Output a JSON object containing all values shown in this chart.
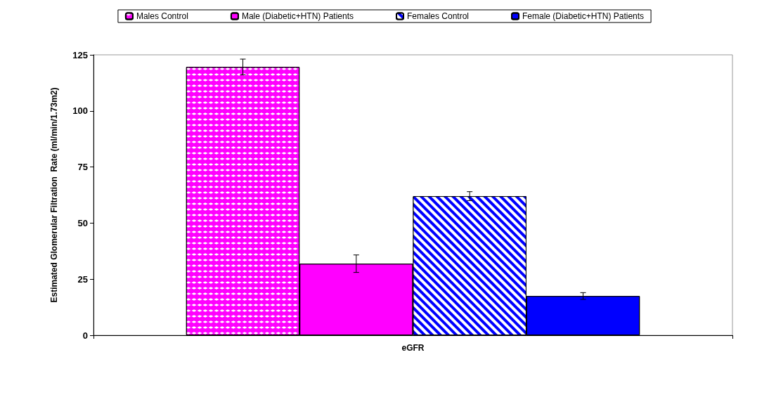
{
  "chart_data": {
    "type": "bar",
    "ylabel": "Estimated Glomerular Filtration  Rate (ml/min/1.73m2)",
    "categories": [
      "eGFR"
    ],
    "series": [
      {
        "name": "Males Control",
        "color": "#ff00ff",
        "values": [
          119.6
        ],
        "errors": [
          3.5
        ]
      },
      {
        "name": "Male (Diabetic+HTN) Patients",
        "color": "#ff00ff",
        "values": [
          31.9
        ],
        "errors": [
          3.9
        ]
      },
      {
        "name": "Females Control",
        "color": "#0000ff",
        "values": [
          62
        ],
        "errors": [
          2
        ]
      },
      {
        "name": "Female (Diabetic+HTN) Patients",
        "color": "#0000ff",
        "values": [
          17.5
        ],
        "errors": [
          1.5
        ]
      }
    ],
    "ylim": [
      0,
      125
    ],
    "yticks": [
      0,
      25,
      50,
      75,
      100,
      125
    ],
    "grid": false,
    "legend": "top"
  }
}
